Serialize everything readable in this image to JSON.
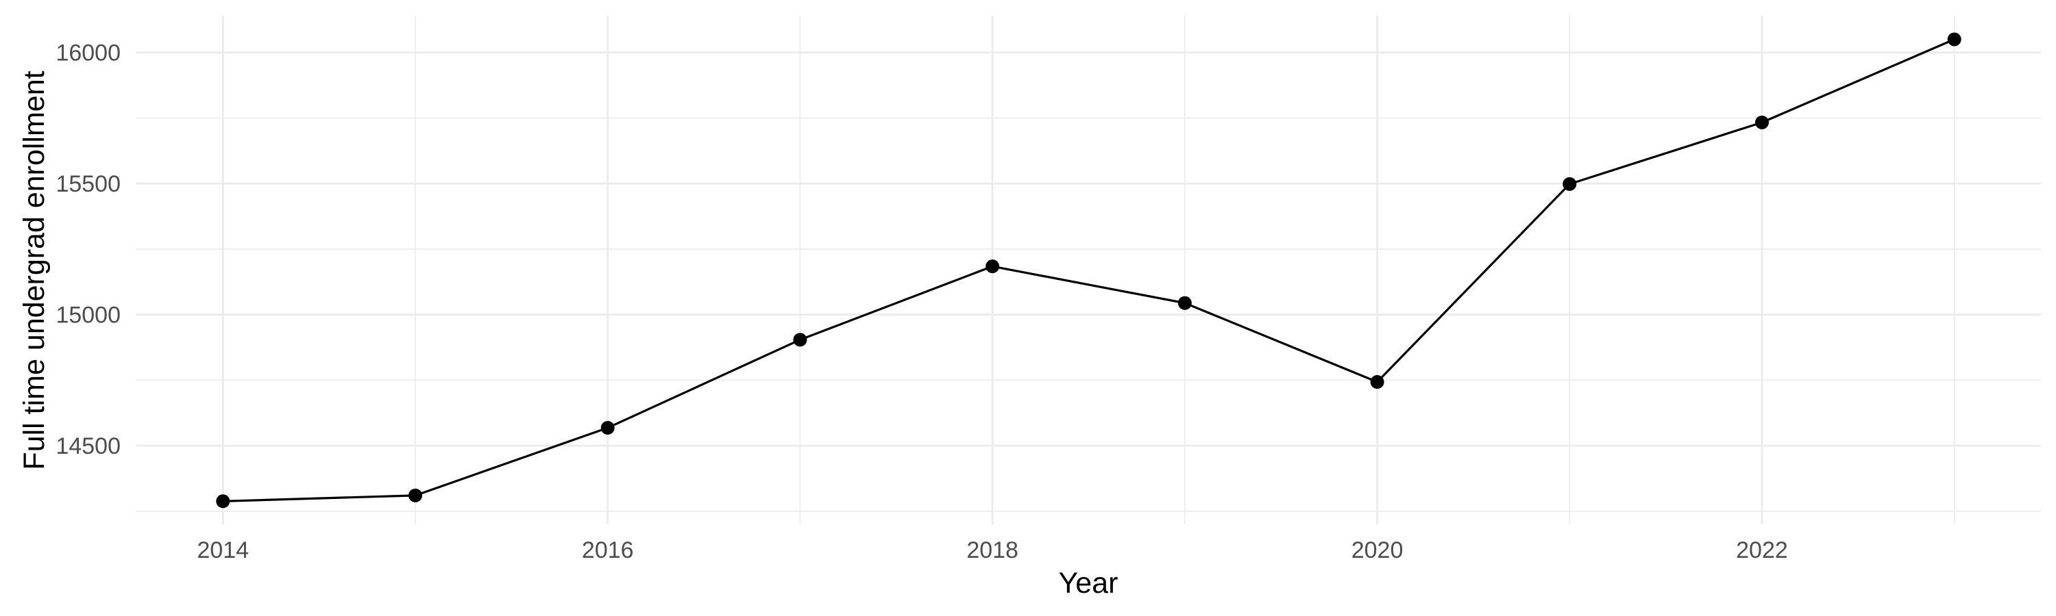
{
  "chart_data": {
    "type": "line",
    "title": "",
    "xlabel": "Year",
    "ylabel": "Full time undergrad enrollment",
    "series": [
      {
        "name": "Full time undergrad enrollment",
        "x": [
          2014,
          2015,
          2016,
          2017,
          2018,
          2019,
          2020,
          2021,
          2022,
          2023
        ],
        "values": [
          14288,
          14310,
          14568,
          14904,
          15184,
          15044,
          14743,
          15498,
          15733,
          16050
        ]
      }
    ],
    "x_ticks": [
      2014,
      2016,
      2018,
      2020,
      2022
    ],
    "x_tick_labels": [
      "2014",
      "2016",
      "2018",
      "2020",
      "2022"
    ],
    "x_minor_ticks": [
      2015,
      2017,
      2019,
      2021,
      2023
    ],
    "y_ticks": [
      14500,
      15000,
      15500,
      16000
    ],
    "y_tick_labels": [
      "14500",
      "15000",
      "15500",
      "16000"
    ],
    "y_minor_ticks": [
      14250,
      14750,
      15250,
      15750
    ],
    "xlim": [
      2013.55,
      2023.45
    ],
    "ylim": [
      14200,
      16140
    ],
    "grid": "major-and-minor, no axis lines, no tick marks",
    "legend": "none",
    "marker": "filled-circle",
    "colors": {
      "line": "#000000",
      "point": "#000000",
      "grid": "#EBEBEB",
      "tick_label": "#4D4D4D",
      "axis_title": "#000000",
      "background": "#FFFFFF"
    }
  }
}
